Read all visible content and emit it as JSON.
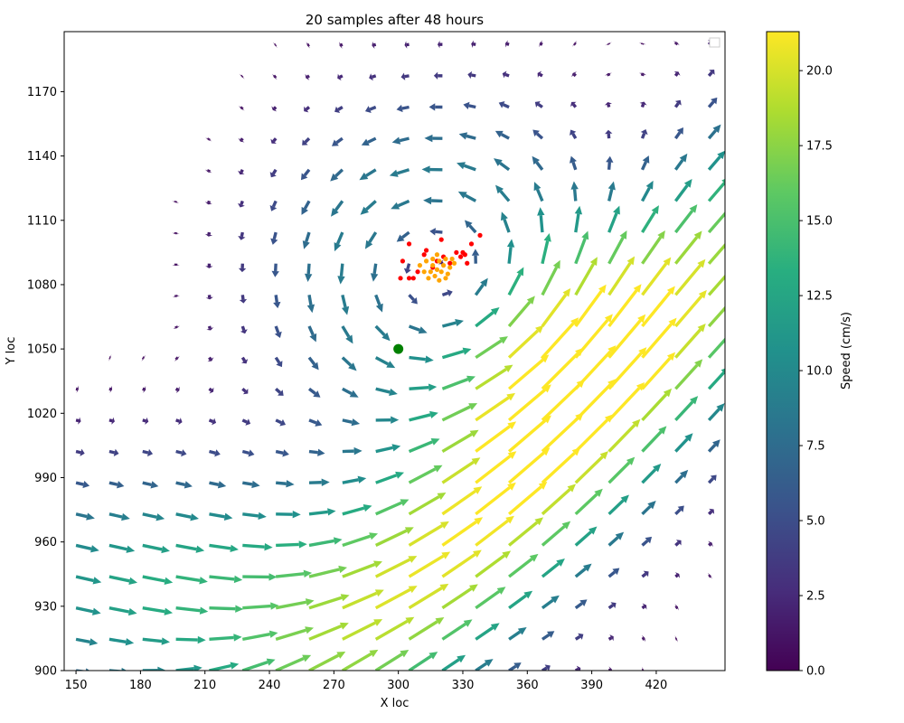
{
  "chart_data": {
    "type": "quiver",
    "title": "20 samples after 48 hours",
    "xlabel": "X loc",
    "ylabel": "Y loc",
    "xlim": [
      144.5,
      452
    ],
    "ylim": [
      900,
      1198
    ],
    "xticks": [
      150,
      180,
      210,
      240,
      270,
      300,
      330,
      360,
      390,
      420
    ],
    "yticks": [
      900,
      930,
      960,
      990,
      1020,
      1050,
      1080,
      1110,
      1140,
      1170
    ],
    "grid": false,
    "legend": "top-right, empty",
    "colorbar": {
      "label": "Speed (cm/s)",
      "range": [
        0,
        21.3
      ],
      "ticks": [
        0.0,
        2.5,
        5.0,
        7.5,
        10.0,
        12.5,
        15.0,
        17.5,
        20.0
      ],
      "colormap": "viridis"
    },
    "flow_field": {
      "description": "cyclonic eddy centered near (320, 1085) with a strong north-east jet; speeds 0-21 cm/s",
      "vortex_center": [
        320,
        1085
      ],
      "jet_axis_start": [
        300,
        930
      ],
      "jet_axis_end": [
        445,
        1085
      ],
      "max_speed": 21
    },
    "marker": {
      "name": "release point",
      "x": 300,
      "y": 1050,
      "color": "#008000"
    },
    "samples_red": [
      {
        "x": 305,
        "y": 1099
      },
      {
        "x": 312,
        "y": 1094
      },
      {
        "x": 320,
        "y": 1101
      },
      {
        "x": 330,
        "y": 1095
      },
      {
        "x": 338,
        "y": 1103
      },
      {
        "x": 302,
        "y": 1091
      },
      {
        "x": 309,
        "y": 1086
      },
      {
        "x": 318,
        "y": 1091
      },
      {
        "x": 327,
        "y": 1095
      },
      {
        "x": 334,
        "y": 1099
      },
      {
        "x": 301,
        "y": 1083
      },
      {
        "x": 307,
        "y": 1083
      },
      {
        "x": 316,
        "y": 1088
      },
      {
        "x": 324,
        "y": 1090
      },
      {
        "x": 332,
        "y": 1090
      },
      {
        "x": 313,
        "y": 1096
      },
      {
        "x": 321,
        "y": 1093
      },
      {
        "x": 329,
        "y": 1093
      },
      {
        "x": 305,
        "y": 1083
      },
      {
        "x": 331,
        "y": 1094
      }
    ],
    "samples_orange": [
      {
        "x": 313,
        "y": 1091
      },
      {
        "x": 316,
        "y": 1089
      },
      {
        "x": 319,
        "y": 1091
      },
      {
        "x": 322,
        "y": 1092
      },
      {
        "x": 315,
        "y": 1086
      },
      {
        "x": 318,
        "y": 1087
      },
      {
        "x": 321,
        "y": 1089
      },
      {
        "x": 324,
        "y": 1088
      },
      {
        "x": 314,
        "y": 1083
      },
      {
        "x": 317,
        "y": 1084
      },
      {
        "x": 320,
        "y": 1086
      },
      {
        "x": 323,
        "y": 1085
      },
      {
        "x": 310,
        "y": 1089
      },
      {
        "x": 326,
        "y": 1090
      },
      {
        "x": 318,
        "y": 1094
      },
      {
        "x": 312,
        "y": 1086
      },
      {
        "x": 325,
        "y": 1092
      },
      {
        "x": 319,
        "y": 1082
      },
      {
        "x": 316,
        "y": 1092
      },
      {
        "x": 322,
        "y": 1083
      }
    ]
  }
}
